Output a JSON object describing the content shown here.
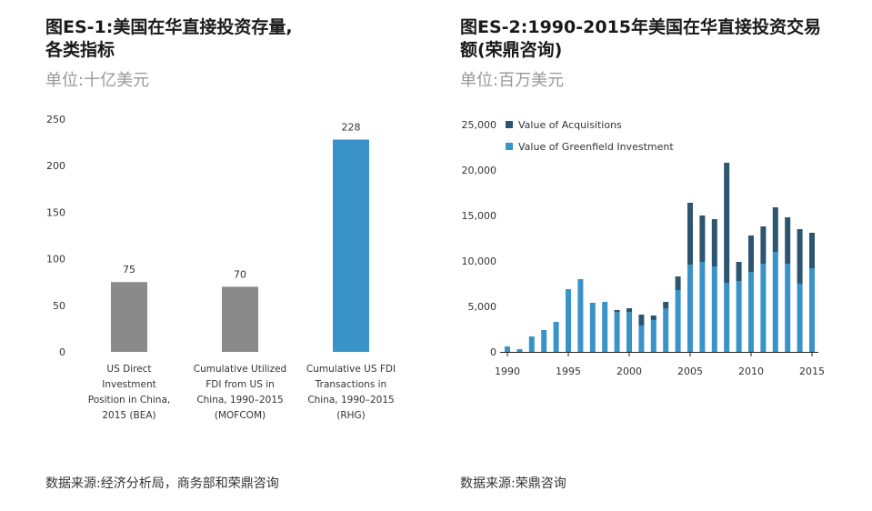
{
  "left": {
    "title_line1": "图ES-1:美国在华直接投资存量,",
    "title_line2": "各类指标",
    "unit": "单位:十亿美元",
    "source": "数据来源:经济分析局，商务部和荣鼎咨询"
  },
  "right": {
    "title_line1": "图ES-2:1990-2015年美国在华直接投资交易",
    "title_line2": "额(荣鼎咨询)",
    "unit": "单位:百万美元",
    "source": "数据来源:荣鼎咨询"
  },
  "chart_data": [
    {
      "type": "bar",
      "ylim": [
        0,
        250
      ],
      "yticks": [
        "0",
        "50",
        "100",
        "150",
        "200",
        "250"
      ],
      "categories": [
        [
          "US Direct",
          "Investment",
          "Position in China,",
          "2015 (BEA)"
        ],
        [
          "Cumulative Utilized",
          "FDI from US in",
          "China, 1990–2015",
          "(MOFCOM)"
        ],
        [
          "Cumulative US FDI",
          "Transactions in",
          "China, 1990–2015",
          "(RHG)"
        ]
      ],
      "values": [
        75,
        70,
        228
      ],
      "value_labels": [
        "75",
        "70",
        "228"
      ],
      "colors": [
        "#8a8a8a",
        "#8a8a8a",
        "#3a93c8"
      ]
    },
    {
      "type": "bar",
      "stacked": true,
      "ylim": [
        0,
        25000
      ],
      "yticks": [
        "0",
        "5,000",
        "10,000",
        "15,000",
        "20,000",
        "25,000"
      ],
      "xticks": [
        "1990",
        "1995",
        "2000",
        "2005",
        "2010",
        "2015"
      ],
      "x": [
        1990,
        1991,
        1992,
        1993,
        1994,
        1995,
        1996,
        1997,
        1998,
        1999,
        2000,
        2001,
        2002,
        2003,
        2004,
        2005,
        2006,
        2007,
        2008,
        2009,
        2010,
        2011,
        2012,
        2013,
        2014,
        2015
      ],
      "series": [
        {
          "name": "Value of Greenfield Investment",
          "color": "#3a93c8",
          "values": [
            600,
            300,
            1700,
            2400,
            3300,
            6900,
            8000,
            5400,
            5500,
            4400,
            4400,
            2900,
            3500,
            4800,
            6800,
            9600,
            9900,
            9400,
            7600,
            7800,
            8800,
            9700,
            11000,
            9700,
            7500,
            9200
          ]
        },
        {
          "name": "Value of Acquisitions",
          "color": "#2d5570",
          "values": [
            0,
            0,
            0,
            0,
            0,
            0,
            0,
            0,
            0,
            200,
            400,
            1200,
            500,
            700,
            1500,
            6800,
            5100,
            5200,
            13200,
            2100,
            4000,
            4100,
            4900,
            5100,
            6000,
            3900
          ]
        }
      ]
    }
  ]
}
